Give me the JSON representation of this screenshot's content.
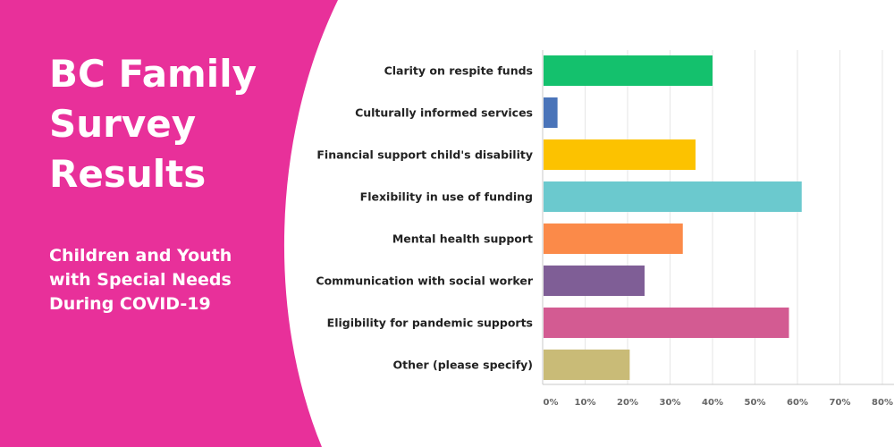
{
  "banner": {
    "title_lines": [
      "BC Family",
      "Survey",
      "Results"
    ],
    "subtitle_lines": [
      "Children and Youth",
      "with Special Needs",
      "During COVID-19"
    ],
    "background_color": "#e8309a",
    "text_color": "#ffffff"
  },
  "chart_data": {
    "type": "bar",
    "orientation": "horizontal",
    "title": "",
    "xlabel": "",
    "ylabel": "",
    "grid": true,
    "xlim": [
      0,
      80
    ],
    "x_ticks": [
      "0%",
      "10%",
      "20%",
      "30%",
      "40%",
      "50%",
      "60%",
      "70%",
      "80%"
    ],
    "categories": [
      "Clarity on respite funds",
      "Culturally informed services",
      "Financial support child's disability",
      "Flexibility in use of funding",
      "Mental health support",
      "Communication with social worker",
      "Eligibility for pandemic supports",
      "Other (please specify)"
    ],
    "values": [
      40,
      3.5,
      36,
      61,
      33,
      24,
      58,
      20.5
    ],
    "colors": [
      "#14c16d",
      "#4a74b9",
      "#fcc200",
      "#6bc9ce",
      "#fb8a49",
      "#7f5e96",
      "#d35b92",
      "#c9bb77"
    ]
  }
}
